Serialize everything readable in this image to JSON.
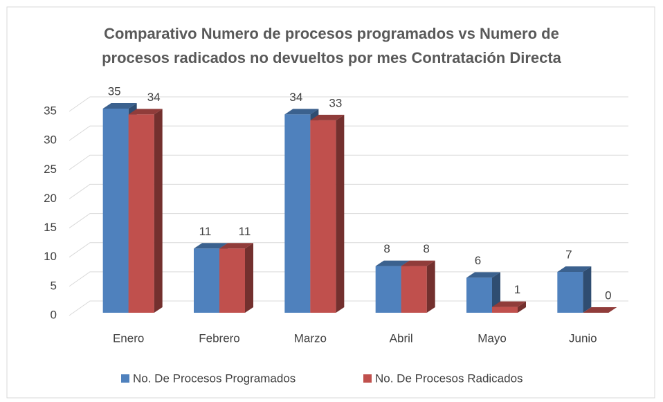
{
  "chart_data": {
    "type": "bar3d",
    "title": "Comparativo Numero de procesos programados vs Numero de procesos radicados no devueltos por mes Contratación Directa",
    "categories": [
      "Enero",
      "Febrero",
      "Marzo",
      "Abril",
      "Mayo",
      "Junio"
    ],
    "series": [
      {
        "name": "No. De Procesos Programados",
        "color": "#4f81bd",
        "values": [
          35,
          11,
          34,
          8,
          6,
          7
        ]
      },
      {
        "name": "No. De Procesos Radicados",
        "color": "#c0504d",
        "values": [
          34,
          11,
          33,
          8,
          1,
          0
        ]
      }
    ],
    "ylim": [
      0,
      35
    ],
    "yticks": [
      0,
      5,
      10,
      15,
      20,
      25,
      30,
      35
    ],
    "grid": true,
    "legend": "bottom"
  }
}
